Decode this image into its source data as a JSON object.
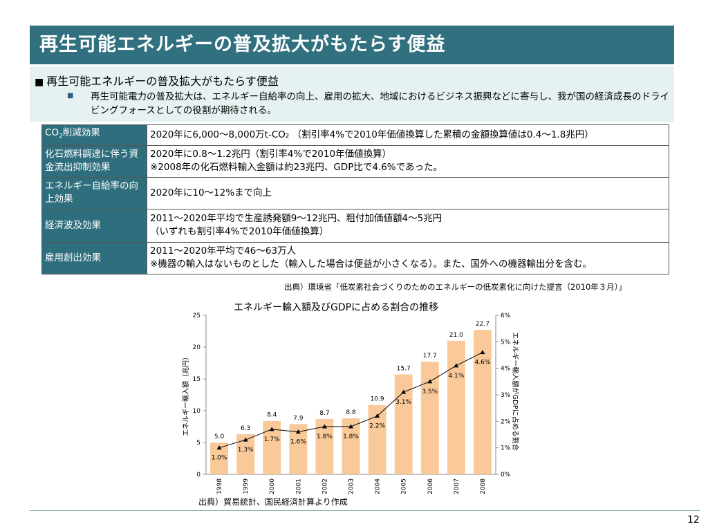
{
  "page_title": "再生可能エネルギーの普及拡大がもたらす便益",
  "summary": {
    "heading": "再生可能エネルギーの普及拡大がもたらす便益",
    "text": "再生可能電力の普及拡大は、エネルギー自給率の向上、雇用の拡大、地域におけるビジネス振興などに寄与し、我が国の経済成長のドライビングフォースとしての役割が期待される。"
  },
  "table": {
    "rows": [
      {
        "label_prefix": "CO",
        "label_sub": "2",
        "label_suffix": "削減効果",
        "line1": "2020年に6,000～8,000万t-CO₂ （割引率4%で2010年価値換算した累積の金額換算値は0.4～1.8兆円）",
        "line2": ""
      },
      {
        "label": "化石燃料調達に伴う資金流出抑制効果",
        "line1": "2020年に0.8～1.2兆円（割引率4%で2010年価値換算）",
        "line2": "※2008年の化石燃料輸入金額は約23兆円、GDP比で4.6%であった。"
      },
      {
        "label": "エネルギー自給率の向上効果",
        "line1": "2020年に10～12%まで向上",
        "line2": ""
      },
      {
        "label": "経済波及効果",
        "line1": "2011～2020年平均で生産誘発額9～12兆円、粗付加価値額4～5兆円",
        "line2": "（いずれも割引率4%で2010年価値換算）"
      },
      {
        "label": "雇用創出効果",
        "line1": "2011～2020年平均で46～63万人",
        "line2": "※機器の輸入はないものとした（輸入した場合は便益が小さくなる）。また、国外への機器輸出分を含む。"
      }
    ],
    "source": "出典）環境省「低炭素社会づくりのためのエネルギーの低炭素化に向けた提言（2010年３月）」"
  },
  "chart_data": {
    "type": "bar",
    "title": "エネルギー輸入額及びGDPに占める割合の推移",
    "categories": [
      "1998",
      "1999",
      "2000",
      "2001",
      "2002",
      "2003",
      "2004",
      "2005",
      "2006",
      "2007",
      "2008"
    ],
    "series": [
      {
        "type": "bar",
        "axis": "left",
        "values": [
          5.0,
          6.3,
          8.4,
          7.9,
          8.7,
          8.8,
          10.9,
          15.7,
          17.7,
          21.0,
          22.7
        ],
        "labels": [
          "5.0",
          "6.3",
          "8.4",
          "7.9",
          "8.7",
          "8.8",
          "10.9",
          "15.7",
          "17.7",
          "21.0",
          "22.7"
        ]
      },
      {
        "type": "line",
        "axis": "right",
        "values": [
          1.0,
          1.3,
          1.7,
          1.6,
          1.8,
          1.8,
          2.2,
          3.1,
          3.5,
          4.1,
          4.6
        ],
        "labels": [
          "1.0%",
          "1.3%",
          "1.7%",
          "1.6%",
          "1.8%",
          "1.8%",
          "2.2%",
          "3.1%",
          "3.5%",
          "4.1%",
          "4.6%"
        ]
      }
    ],
    "ylabel": "エネルギー輸入額（兆円）",
    "y2label": "エネルギー輸入額がGDPに占める割合",
    "ylim": [
      0,
      25
    ],
    "y2lim": [
      0,
      6
    ],
    "yticks": [
      "0",
      "5",
      "10",
      "15",
      "20",
      "25"
    ],
    "y2ticks": [
      "0%",
      "1%",
      "2%",
      "3%",
      "4%",
      "5%",
      "6%"
    ],
    "grid": false,
    "colors": {
      "bar": "#fac999",
      "line": "#000000",
      "marker": "#000000"
    },
    "source": "出典）貿易統計、国民経済計算より作成"
  },
  "page_number": "12",
  "colors": {
    "title_bg": "#31717f",
    "summary_bg": "#e6f2f1",
    "table_header_bg": "#2f6f7d"
  }
}
